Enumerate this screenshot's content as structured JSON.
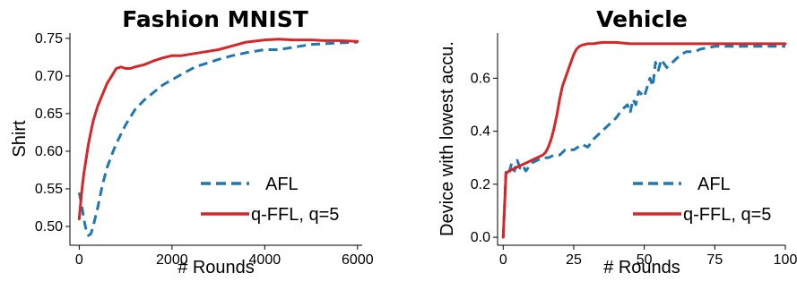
{
  "chart_data": [
    {
      "type": "line",
      "title": "Fashion MNIST",
      "xlabel": "# Rounds",
      "ylabel": "Shirt",
      "xlim": [
        -200,
        6100
      ],
      "ylim": [
        0.475,
        0.757
      ],
      "xticks": [
        0,
        2000,
        4000,
        6000
      ],
      "xtick_labels": [
        "0",
        "2000",
        "4000",
        "6000"
      ],
      "yticks": [
        0.5,
        0.55,
        0.6,
        0.65,
        0.7,
        0.75
      ],
      "ytick_labels": [
        "0.50",
        "0.55",
        "0.60",
        "0.65",
        "0.70",
        "0.75"
      ],
      "grid": false,
      "legend_position": "lower-right",
      "series": [
        {
          "name": "AFL",
          "color": "#1f77b4",
          "style": "dashed",
          "x": [
            0,
            50,
            100,
            150,
            200,
            250,
            300,
            400,
            500,
            600,
            700,
            800,
            1000,
            1200,
            1400,
            1600,
            1800,
            2000,
            2200,
            2500,
            2800,
            3000,
            3300,
            3600,
            4000,
            4300,
            4600,
            5000,
            5300,
            5600,
            6000
          ],
          "y": [
            0.545,
            0.53,
            0.51,
            0.495,
            0.488,
            0.49,
            0.5,
            0.525,
            0.555,
            0.578,
            0.595,
            0.61,
            0.635,
            0.655,
            0.668,
            0.678,
            0.688,
            0.695,
            0.702,
            0.712,
            0.718,
            0.722,
            0.727,
            0.731,
            0.735,
            0.735,
            0.738,
            0.742,
            0.743,
            0.744,
            0.745
          ]
        },
        {
          "name": "q-FFL, q=5",
          "color": "#d62728",
          "style": "solid",
          "x": [
            0,
            30,
            60,
            100,
            150,
            200,
            300,
            400,
            500,
            600,
            700,
            800,
            900,
            1000,
            1100,
            1200,
            1400,
            1600,
            1800,
            2000,
            2200,
            2500,
            2800,
            3000,
            3300,
            3600,
            4000,
            4300,
            4600,
            5000,
            5300,
            5600,
            6000
          ],
          "y": [
            0.51,
            0.53,
            0.55,
            0.57,
            0.59,
            0.61,
            0.64,
            0.66,
            0.675,
            0.69,
            0.7,
            0.71,
            0.712,
            0.71,
            0.71,
            0.712,
            0.715,
            0.72,
            0.724,
            0.727,
            0.727,
            0.73,
            0.733,
            0.735,
            0.74,
            0.745,
            0.748,
            0.749,
            0.748,
            0.748,
            0.747,
            0.747,
            0.746
          ]
        }
      ]
    },
    {
      "type": "line",
      "title": "Vehicle",
      "xlabel": "# Rounds",
      "ylabel": "Device with lowest accu.",
      "xlim": [
        -2,
        100
      ],
      "ylim": [
        -0.03,
        0.77
      ],
      "xticks": [
        0,
        25,
        50,
        75,
        100
      ],
      "xtick_labels": [
        "0",
        "25",
        "50",
        "75",
        "100"
      ],
      "yticks": [
        0.0,
        0.2,
        0.4,
        0.6
      ],
      "ytick_labels": [
        "0.0",
        "0.2",
        "0.4",
        "0.6"
      ],
      "grid": false,
      "legend_position": "lower-right",
      "series": [
        {
          "name": "AFL",
          "color": "#1f77b4",
          "style": "dashed",
          "x": [
            0,
            1,
            2,
            3,
            4,
            5,
            6,
            7,
            8,
            10,
            12,
            14,
            16,
            18,
            20,
            22,
            25,
            28,
            30,
            32,
            35,
            38,
            40,
            42,
            44,
            45,
            46,
            47,
            48,
            50,
            52,
            53,
            54,
            55,
            56,
            58,
            60,
            63,
            65,
            68,
            70,
            75,
            80,
            85,
            90,
            95,
            100
          ],
          "y": [
            0.0,
            0.25,
            0.24,
            0.28,
            0.25,
            0.29,
            0.26,
            0.27,
            0.25,
            0.28,
            0.29,
            0.3,
            0.3,
            0.31,
            0.31,
            0.33,
            0.33,
            0.35,
            0.34,
            0.37,
            0.4,
            0.43,
            0.45,
            0.48,
            0.5,
            0.47,
            0.52,
            0.5,
            0.55,
            0.53,
            0.6,
            0.57,
            0.66,
            0.63,
            0.67,
            0.64,
            0.66,
            0.69,
            0.7,
            0.7,
            0.71,
            0.72,
            0.72,
            0.72,
            0.72,
            0.72,
            0.72
          ]
        },
        {
          "name": "q-FFL, q=5",
          "color": "#d62728",
          "style": "solid",
          "x": [
            0,
            1,
            2,
            4,
            6,
            8,
            10,
            12,
            14,
            15,
            16,
            17,
            18,
            19,
            20,
            21,
            22,
            23,
            24,
            25,
            26,
            27,
            28,
            30,
            32,
            35,
            40,
            45,
            50,
            55,
            60,
            65,
            70,
            75,
            80,
            85,
            90,
            95,
            100
          ],
          "y": [
            0.0,
            0.24,
            0.25,
            0.26,
            0.27,
            0.28,
            0.29,
            0.3,
            0.31,
            0.32,
            0.34,
            0.37,
            0.41,
            0.46,
            0.52,
            0.57,
            0.6,
            0.63,
            0.66,
            0.69,
            0.71,
            0.72,
            0.725,
            0.73,
            0.73,
            0.735,
            0.735,
            0.73,
            0.73,
            0.73,
            0.73,
            0.73,
            0.73,
            0.73,
            0.73,
            0.73,
            0.73,
            0.73,
            0.73
          ]
        }
      ]
    }
  ]
}
